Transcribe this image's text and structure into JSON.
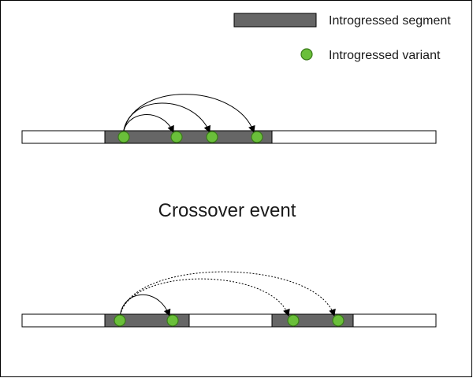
{
  "legend": {
    "segment_label": "Introgressed segment",
    "variant_label": "Introgressed variant"
  },
  "middle_label": "Crossover event",
  "colors": {
    "segment_fill": "#666666",
    "variant_fill": "#6abf3a",
    "variant_stroke": "#3a7a1a",
    "chromosome_fill": "#ffffff",
    "stroke": "#000000"
  }
}
